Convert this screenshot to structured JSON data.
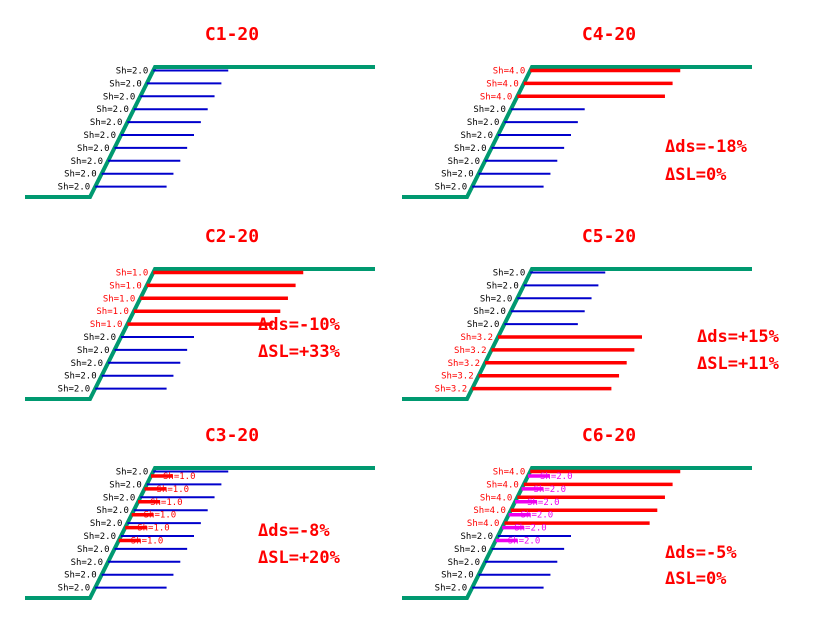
{
  "colors": {
    "slope": "#009970",
    "blue": "#0000cc",
    "red": "#ff0000",
    "magenta": "#ee00ee",
    "label_black": "#000000",
    "title_red": "#ff0000"
  },
  "panels": [
    {
      "title": "C1-20",
      "deltas": [],
      "rows": [
        {
          "label": "Sh=2.0",
          "color": "blue"
        },
        {
          "label": "Sh=2.0",
          "color": "blue"
        },
        {
          "label": "Sh=2.0",
          "color": "blue"
        },
        {
          "label": "Sh=2.0",
          "color": "blue"
        },
        {
          "label": "Sh=2.0",
          "color": "blue"
        },
        {
          "label": "Sh=2.0",
          "color": "blue"
        },
        {
          "label": "Sh=2.0",
          "color": "blue"
        },
        {
          "label": "Sh=2.0",
          "color": "blue"
        },
        {
          "label": "Sh=2.0",
          "color": "blue"
        },
        {
          "label": "Sh=2.0",
          "color": "blue"
        }
      ]
    },
    {
      "title": "C4-20",
      "deltas": [
        "Δds=-18%",
        "ΔSL=0%"
      ],
      "rows": [
        {
          "label": "Sh=4.0",
          "color": "red"
        },
        {
          "label": "Sh=4.0",
          "color": "red"
        },
        {
          "label": "Sh=4.0",
          "color": "red"
        },
        {
          "label": "Sh=2.0",
          "color": "blue"
        },
        {
          "label": "Sh=2.0",
          "color": "blue"
        },
        {
          "label": "Sh=2.0",
          "color": "blue"
        },
        {
          "label": "Sh=2.0",
          "color": "blue"
        },
        {
          "label": "Sh=2.0",
          "color": "blue"
        },
        {
          "label": "Sh=2.0",
          "color": "blue"
        },
        {
          "label": "Sh=2.0",
          "color": "blue"
        }
      ]
    },
    {
      "title": "C2-20",
      "deltas": [
        "Δds=-10%",
        "ΔSL=+33%"
      ],
      "rows": [
        {
          "label": "Sh=1.0",
          "color": "red"
        },
        {
          "label": "Sh=1.0",
          "color": "red"
        },
        {
          "label": "Sh=1.0",
          "color": "red"
        },
        {
          "label": "Sh=1.0",
          "color": "red"
        },
        {
          "label": "Sh=1.0",
          "color": "red"
        },
        {
          "label": "Sh=2.0",
          "color": "blue"
        },
        {
          "label": "Sh=2.0",
          "color": "blue"
        },
        {
          "label": "Sh=2.0",
          "color": "blue"
        },
        {
          "label": "Sh=2.0",
          "color": "blue"
        },
        {
          "label": "Sh=2.0",
          "color": "blue"
        }
      ]
    },
    {
      "title": "C5-20",
      "deltas": [
        "Δds=+15%",
        "ΔSL=+11%"
      ],
      "rows": [
        {
          "label": "Sh=2.0",
          "color": "blue"
        },
        {
          "label": "Sh=2.0",
          "color": "blue"
        },
        {
          "label": "Sh=2.0",
          "color": "blue"
        },
        {
          "label": "Sh=2.0",
          "color": "blue"
        },
        {
          "label": "Sh=2.0",
          "color": "blue"
        },
        {
          "label": "Sh=3.2",
          "color": "red"
        },
        {
          "label": "Sh=3.2",
          "color": "red"
        },
        {
          "label": "Sh=3.2",
          "color": "red"
        },
        {
          "label": "Sh=3.2",
          "color": "red"
        },
        {
          "label": "Sh=3.2",
          "color": "red"
        }
      ]
    },
    {
      "title": "C3-20",
      "deltas": [
        "Δds=-8%",
        "ΔSL=+20%"
      ],
      "rows": [
        {
          "label": "Sh=2.0",
          "color": "blue",
          "inner": {
            "label": "Sh=1.0",
            "color": "red"
          }
        },
        {
          "label": "Sh=2.0",
          "color": "blue",
          "inner": {
            "label": "Sh=1.0",
            "color": "red"
          }
        },
        {
          "label": "Sh=2.0",
          "color": "blue",
          "inner": {
            "label": "Sh=1.0",
            "color": "red"
          }
        },
        {
          "label": "Sh=2.0",
          "color": "blue",
          "inner": {
            "label": "Sh=1.0",
            "color": "red"
          }
        },
        {
          "label": "Sh=2.0",
          "color": "blue",
          "inner": {
            "label": "Sh=1.0",
            "color": "red"
          }
        },
        {
          "label": "Sh=2.0",
          "color": "blue",
          "inner": {
            "label": "Sh=1.0",
            "color": "red"
          }
        },
        {
          "label": "Sh=2.0",
          "color": "blue"
        },
        {
          "label": "Sh=2.0",
          "color": "blue"
        },
        {
          "label": "Sh=2.0",
          "color": "blue"
        },
        {
          "label": "Sh=2.0",
          "color": "blue"
        }
      ]
    },
    {
      "title": "C6-20",
      "deltas": [
        "Δds=-5%",
        "ΔSL=0%"
      ],
      "rows": [
        {
          "label": "Sh=4.0",
          "color": "red",
          "inner": {
            "label": "Sh=2.0",
            "color": "magenta"
          }
        },
        {
          "label": "Sh=4.0",
          "color": "red",
          "inner": {
            "label": "Sh=2.0",
            "color": "magenta"
          }
        },
        {
          "label": "Sh=4.0",
          "color": "red",
          "inner": {
            "label": "Sh=2.0",
            "color": "magenta"
          }
        },
        {
          "label": "Sh=4.0",
          "color": "red",
          "inner": {
            "label": "Sh=2.0",
            "color": "magenta"
          }
        },
        {
          "label": "Sh=4.0",
          "color": "red",
          "inner": {
            "label": "Sh=2.0",
            "color": "magenta"
          }
        },
        {
          "label": "Sh=2.0",
          "color": "blue",
          "inner": {
            "label": "Sh=2.0",
            "color": "magenta"
          }
        },
        {
          "label": "Sh=2.0",
          "color": "blue"
        },
        {
          "label": "Sh=2.0",
          "color": "blue"
        },
        {
          "label": "Sh=2.0",
          "color": "blue"
        },
        {
          "label": "Sh=2.0",
          "color": "blue"
        }
      ]
    }
  ]
}
